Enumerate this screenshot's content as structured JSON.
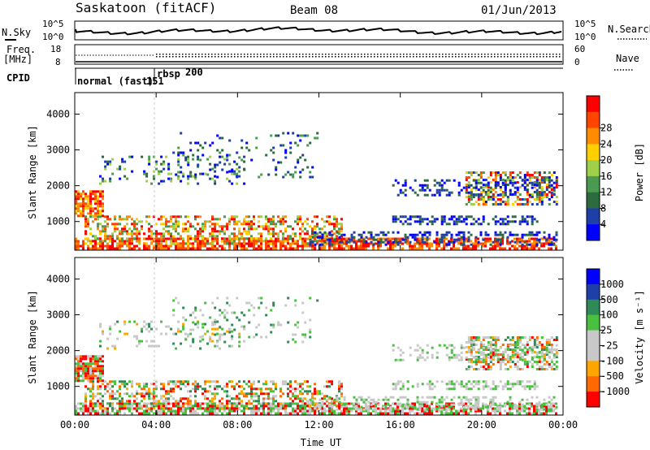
{
  "header": {
    "station": "Saskatoon (fitACF)",
    "beam": "Beam 08",
    "date": "01/Jun/2013"
  },
  "noise_panel": {
    "left_label": "N.Sky",
    "left_ticks": [
      "10^5",
      "10^0"
    ],
    "right_ticks": [
      "10^5",
      "10^0"
    ],
    "right_label": "N.Search"
  },
  "freq_panel": {
    "left_label_1": "Freq.",
    "left_label_2": "[MHz]",
    "left_ticks": [
      "18",
      "8"
    ],
    "right_ticks": [
      "60",
      "0"
    ],
    "right_label": "Nave"
  },
  "cpid_panel": {
    "label": "CPID",
    "mode_1": "normal (fast)",
    "mode_1_id": "151",
    "mode_2": "rbsp",
    "mode_2_id": "200"
  },
  "colors": {
    "power_bar": [
      "#0000ff",
      "#1e3fa8",
      "#2d6b3e",
      "#4a9a50",
      "#9ed04a",
      "#ffd000",
      "#ff8c00",
      "#ff4500",
      "#ff0000"
    ],
    "velocity_bar": [
      "#ff0000",
      "#ff6a00",
      "#ffa500",
      "#c8c8c8",
      "#c8c8c8",
      "#4ac040",
      "#2e8b57",
      "#1e3fa8",
      "#0000ff"
    ]
  },
  "chart_data": [
    {
      "type": "heatmap",
      "name": "power",
      "ylabel": "Slant Range [km]",
      "yticks": [
        "1000",
        "2000",
        "3000",
        "4000"
      ],
      "ylim": [
        200,
        4600
      ],
      "colorbar_label": "Power [dB]",
      "colorbar_ticks": [
        "4",
        "8",
        "12",
        "16",
        "20",
        "24",
        "28"
      ],
      "xticks": [
        "00:00",
        "04:00",
        "08:00",
        "12:00",
        "16:00",
        "20:00",
        "00:00"
      ],
      "xlim": [
        0,
        24
      ]
    },
    {
      "type": "heatmap",
      "name": "velocity",
      "ylabel": "Slant Range [km]",
      "yticks": [
        "1000",
        "2000",
        "3000",
        "4000"
      ],
      "ylim": [
        200,
        4600
      ],
      "colorbar_label": "Velocity [m s⁻¹]",
      "colorbar_ticks": [
        "1000",
        "500",
        "100",
        "25",
        "-25",
        "-100",
        "-500",
        "-1000"
      ],
      "xticks": [
        "00:00",
        "04:00",
        "08:00",
        "12:00",
        "16:00",
        "20:00",
        "00:00"
      ],
      "xlabel": "Time UT",
      "xlim": [
        0,
        24
      ]
    }
  ]
}
